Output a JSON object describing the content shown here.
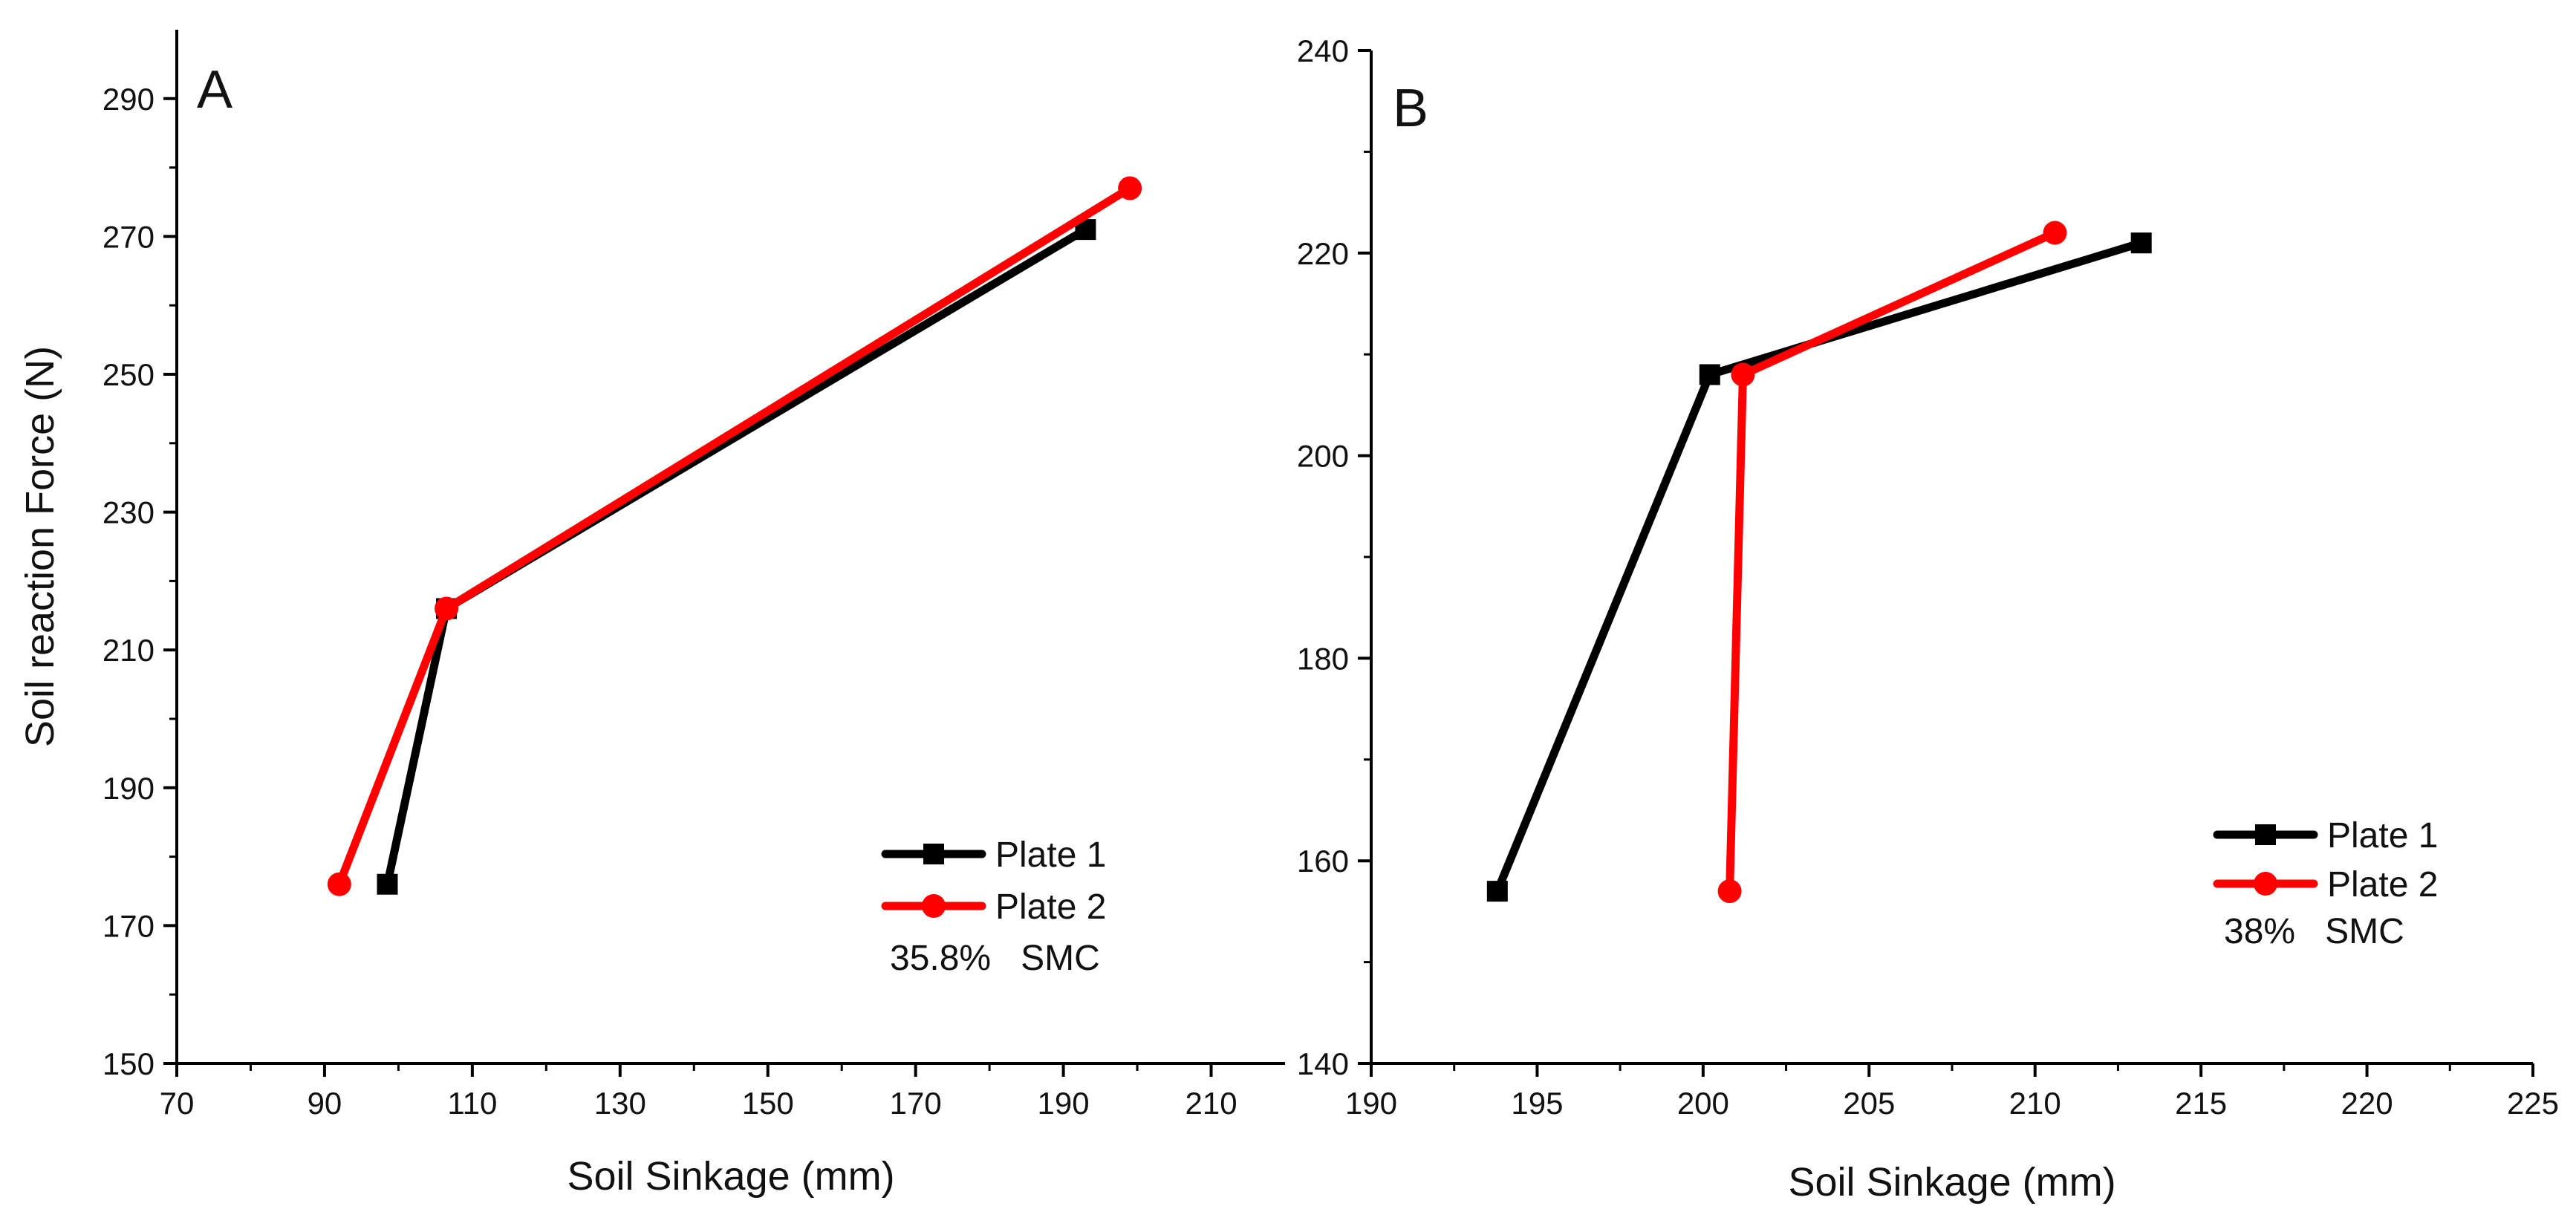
{
  "chart_data": [
    {
      "type": "line",
      "panel_label": "A",
      "xlabel": "Soil Sinkage (mm)",
      "ylabel": "Soil reaction Force (N)",
      "xlim": [
        70,
        220
      ],
      "ylim": [
        150,
        300
      ],
      "xticks": [
        70,
        90,
        110,
        130,
        150,
        170,
        190,
        210
      ],
      "yticks": [
        150,
        170,
        190,
        210,
        230,
        250,
        270,
        290
      ],
      "x_tick_labels": [
        "70",
        "90",
        "110",
        "130",
        "150",
        "170",
        "190",
        "210"
      ],
      "y_tick_labels": [
        "150",
        "170",
        "190",
        "210",
        "230",
        "250",
        "270",
        "290"
      ],
      "legend_position": "bottom-right",
      "annotation": "35.8%   SMC",
      "series": [
        {
          "name": "Plate 1",
          "color": "#000000",
          "marker": "square",
          "x": [
            98.5,
            106.5,
            193
          ],
          "y": [
            176,
            216,
            271
          ]
        },
        {
          "name": "Plate 2",
          "color": "#ff0000",
          "marker": "circle",
          "x": [
            92,
            106.5,
            199
          ],
          "y": [
            176,
            216,
            277
          ]
        }
      ]
    },
    {
      "type": "line",
      "panel_label": "B",
      "xlabel": "Soil Sinkage (mm)",
      "ylabel": "",
      "xlim": [
        190,
        225
      ],
      "ylim": [
        140,
        240
      ],
      "xticks": [
        190,
        195,
        200,
        205,
        210,
        215,
        220,
        225
      ],
      "yticks": [
        140,
        160,
        180,
        200,
        220,
        240
      ],
      "x_tick_labels": [
        "190",
        "195",
        "200",
        "205",
        "210",
        "215",
        "220",
        "225"
      ],
      "y_tick_labels": [
        "140",
        "160",
        "180",
        "200",
        "220",
        "240"
      ],
      "legend_position": "bottom-right",
      "annotation": "38%   SMC",
      "series": [
        {
          "name": "Plate 1",
          "color": "#000000",
          "marker": "square",
          "x": [
            193.8,
            200.2,
            213.2
          ],
          "y": [
            157,
            208,
            221
          ]
        },
        {
          "name": "Plate 2",
          "color": "#ff0000",
          "marker": "circle",
          "x": [
            200.8,
            201.2,
            210.6
          ],
          "y": [
            157,
            208,
            222
          ]
        }
      ]
    }
  ]
}
